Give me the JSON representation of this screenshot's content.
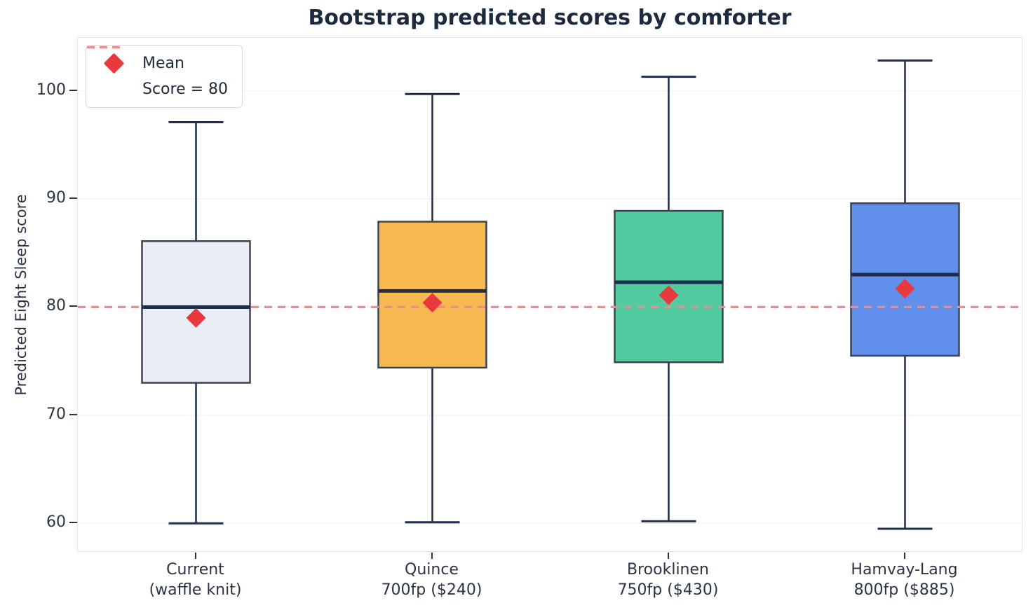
{
  "chart_data": {
    "type": "boxplot",
    "title": "Bootstrap predicted scores by comforter",
    "ylabel": "Predicted Eight Sleep score",
    "xlabel": "",
    "ylim": [
      57.3,
      104.9
    ],
    "yticks": [
      60,
      70,
      80,
      90,
      100
    ],
    "grid": "horizontal",
    "categories": [
      [
        "Current",
        "(waffle knit)"
      ],
      [
        "Quince",
        "700fp ($240)"
      ],
      [
        "Brooklinen",
        "750fp ($430)"
      ],
      [
        "Hamvay-Lang",
        "800fp ($885)"
      ]
    ],
    "series": [
      {
        "name": "Current (waffle knit)",
        "whisker_low": 60.0,
        "q1": 73.0,
        "median": 80.0,
        "q3": 86.1,
        "whisker_high": 97.1,
        "mean": 79.0,
        "box_color": "#e9edf5"
      },
      {
        "name": "Quince 700fp ($240)",
        "whisker_low": 60.1,
        "q1": 74.4,
        "median": 81.5,
        "q3": 87.9,
        "whisker_high": 99.7,
        "mean": 80.4,
        "box_color": "#f5b94f"
      },
      {
        "name": "Brooklinen 750fp ($430)",
        "whisker_low": 60.2,
        "q1": 74.9,
        "median": 82.3,
        "q3": 88.9,
        "whisker_high": 101.3,
        "mean": 81.1,
        "box_color": "#52cba0"
      },
      {
        "name": "Hamvay-Lang 800fp ($885)",
        "whisker_low": 59.5,
        "q1": 75.5,
        "median": 83.0,
        "q3": 89.6,
        "whisker_high": 102.8,
        "mean": 81.7,
        "box_color": "#6190ec"
      }
    ],
    "reference_line": {
      "value": 80,
      "label": "Score = 80"
    },
    "legend": {
      "position": "upper-left",
      "items": [
        {
          "label": "Mean",
          "marker": "diamond",
          "color": "#e83a3e"
        },
        {
          "label": "Score = 80",
          "marker": "dashed-line",
          "color": "#f08a8d"
        }
      ]
    },
    "colors": {
      "mean_marker": "#e83a3e",
      "ref_line": "#f08a8d",
      "whisker_median": "#1f2d4c",
      "box_edge": "#3a4252",
      "grid": "#f3f4f6",
      "spine": "#e2e4e9",
      "text": "#2b3445",
      "title": "#1c2a40"
    }
  }
}
